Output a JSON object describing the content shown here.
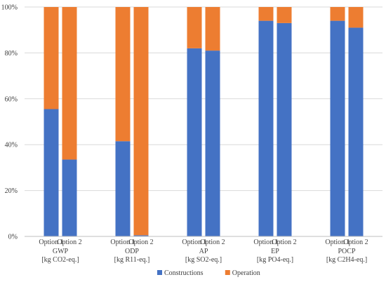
{
  "chart_data": {
    "type": "bar",
    "stacked": true,
    "percent_stacked": true,
    "y_axis": {
      "ylim": [
        0,
        100
      ],
      "ticks": [
        0,
        20,
        40,
        60,
        80,
        100
      ],
      "tick_labels": [
        "0%",
        "20%",
        "40%",
        "60%",
        "80%",
        "100%"
      ]
    },
    "grid": "horizontal",
    "legend_placement": "bottom",
    "groups": [
      {
        "label_line1": "GWP",
        "label_line2": "[kg CO2-eq.]",
        "categories": [
          "Option 1",
          "Option 2"
        ]
      },
      {
        "label_line1": "ODP",
        "label_line2": "[kg R11-eq.]",
        "categories": [
          "Option 1",
          "Option 2"
        ]
      },
      {
        "label_line1": "AP",
        "label_line2": "[kg SO2-eq.]",
        "categories": [
          "Option 1",
          "Option 2"
        ]
      },
      {
        "label_line1": "EP",
        "label_line2": "[kg PO4-eq.]",
        "categories": [
          "Option 1",
          "Option 2"
        ]
      },
      {
        "label_line1": "POCP",
        "label_line2": "[kg C2H4-eq.]",
        "categories": [
          "Option 1",
          "Option 2"
        ]
      }
    ],
    "series": [
      {
        "name": "Constructions",
        "color": "#4472C4",
        "values": [
          55.5,
          33.5,
          41.5,
          0.5,
          82,
          81,
          94,
          93,
          94,
          91
        ]
      },
      {
        "name": "Operation",
        "color": "#ED7D31",
        "values": [
          44.5,
          66.5,
          58.5,
          99.5,
          18,
          19,
          6,
          7,
          6,
          9
        ]
      }
    ]
  }
}
